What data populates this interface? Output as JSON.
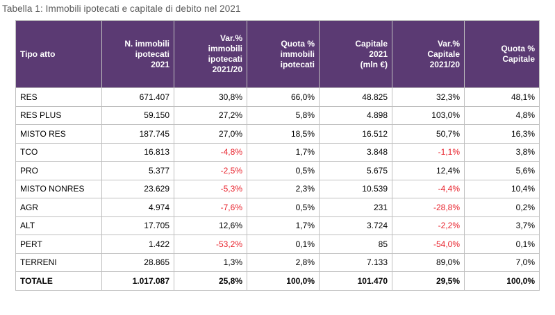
{
  "caption": "Tabella 1: Immobili ipotecati e capitale di debito nel 2021",
  "colors": {
    "header_bg": "#5b3a73",
    "header_text": "#ffffff",
    "negative_value": "#e8212b"
  },
  "table": {
    "columns": [
      {
        "lines": [
          "Tipo atto"
        ]
      },
      {
        "lines": [
          "N. immobili",
          "ipotecati",
          "2021"
        ]
      },
      {
        "lines": [
          "Var.%",
          "immobili",
          "ipotecati",
          "2021/20"
        ]
      },
      {
        "lines": [
          "Quota %",
          "immobili",
          "ipotecati"
        ]
      },
      {
        "lines": [
          "Capitale",
          "2021",
          "(mln €)"
        ]
      },
      {
        "lines": [
          "Var.%",
          "Capitale",
          "2021/20"
        ]
      },
      {
        "lines": [
          "Quota %",
          "Capitale"
        ]
      }
    ],
    "rows": [
      {
        "tipo": "RES",
        "n_immobili": "671.407",
        "var_immobili": "30,8%",
        "quota_immobili": "66,0%",
        "capitale": "48.825",
        "var_capitale": "32,3%",
        "quota_capitale": "48,1%"
      },
      {
        "tipo": "RES PLUS",
        "n_immobili": "59.150",
        "var_immobili": "27,2%",
        "quota_immobili": "5,8%",
        "capitale": "4.898",
        "var_capitale": "103,0%",
        "quota_capitale": "4,8%"
      },
      {
        "tipo": "MISTO RES",
        "n_immobili": "187.745",
        "var_immobili": "27,0%",
        "quota_immobili": "18,5%",
        "capitale": "16.512",
        "var_capitale": "50,7%",
        "quota_capitale": "16,3%"
      },
      {
        "tipo": "TCO",
        "n_immobili": "16.813",
        "var_immobili": "-4,8%",
        "quota_immobili": "1,7%",
        "capitale": "3.848",
        "var_capitale": "-1,1%",
        "quota_capitale": "3,8%"
      },
      {
        "tipo": "PRO",
        "n_immobili": "5.377",
        "var_immobili": "-2,5%",
        "quota_immobili": "0,5%",
        "capitale": "5.675",
        "var_capitale": "12,4%",
        "quota_capitale": "5,6%"
      },
      {
        "tipo": "MISTO NONRES",
        "n_immobili": "23.629",
        "var_immobili": "-5,3%",
        "quota_immobili": "2,3%",
        "capitale": "10.539",
        "var_capitale": "-4,4%",
        "quota_capitale": "10,4%"
      },
      {
        "tipo": "AGR",
        "n_immobili": "4.974",
        "var_immobili": "-7,6%",
        "quota_immobili": "0,5%",
        "capitale": "231",
        "var_capitale": "-28,8%",
        "quota_capitale": "0,2%"
      },
      {
        "tipo": "ALT",
        "n_immobili": "17.705",
        "var_immobili": "12,6%",
        "quota_immobili": "1,7%",
        "capitale": "3.724",
        "var_capitale": "-2,2%",
        "quota_capitale": "3,7%"
      },
      {
        "tipo": "PERT",
        "n_immobili": "1.422",
        "var_immobili": "-53,2%",
        "quota_immobili": "0,1%",
        "capitale": "85",
        "var_capitale": "-54,0%",
        "quota_capitale": "0,1%"
      },
      {
        "tipo": "TERRENI",
        "n_immobili": "28.865",
        "var_immobili": "1,3%",
        "quota_immobili": "2,8%",
        "capitale": "7.133",
        "var_capitale": "89,0%",
        "quota_capitale": "7,0%"
      }
    ],
    "total": {
      "tipo": "TOTALE",
      "n_immobili": "1.017.087",
      "var_immobili": "25,8%",
      "quota_immobili": "100,0%",
      "capitale": "101.470",
      "var_capitale": "29,5%",
      "quota_capitale": "100,0%"
    }
  }
}
